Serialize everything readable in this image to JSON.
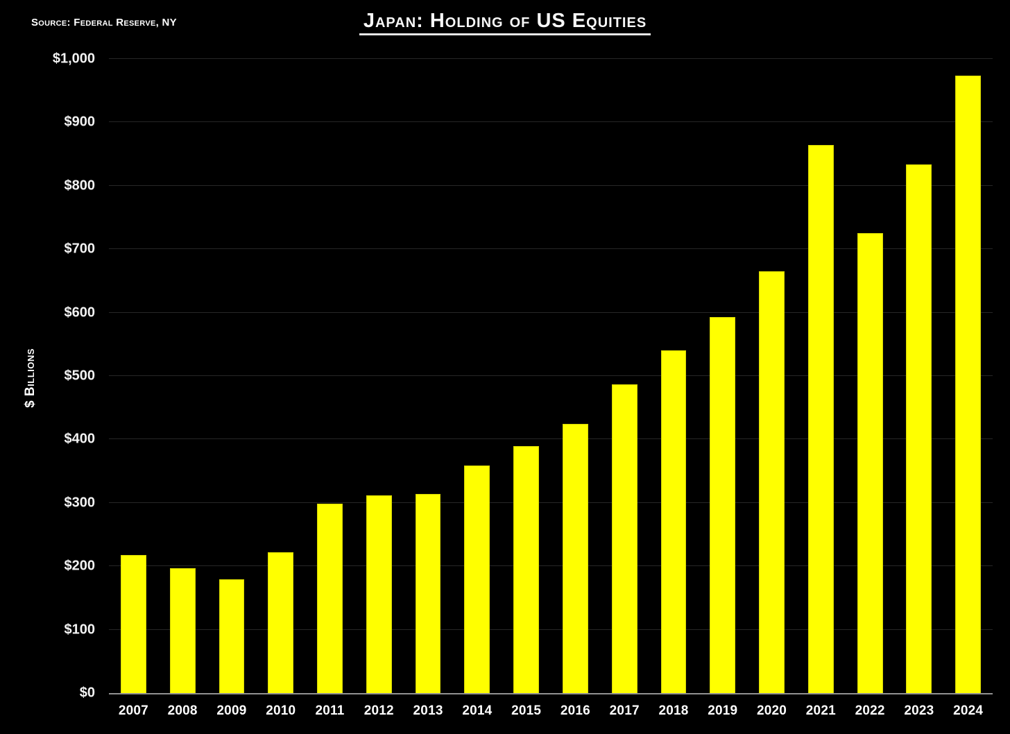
{
  "header": {
    "source_note": "Source: Federal Reserve, NY",
    "title": "Japan: Holding of US Equities"
  },
  "y_axis": {
    "label": "$ Billions",
    "tick_labels": [
      "$0",
      "$100",
      "$200",
      "$300",
      "$400",
      "$500",
      "$600",
      "$700",
      "$800",
      "$900",
      "$1,000"
    ],
    "tick_step": 100,
    "max": 1000
  },
  "chart_data": {
    "type": "bar",
    "title": "Japan: Holding of US Equities",
    "source": "Source: Federal Reserve, NY",
    "categories": [
      "2007",
      "2008",
      "2009",
      "2010",
      "2011",
      "2012",
      "2013",
      "2014",
      "2015",
      "2016",
      "2017",
      "2018",
      "2019",
      "2020",
      "2021",
      "2022",
      "2023",
      "2024"
    ],
    "values": [
      218,
      197,
      179,
      222,
      299,
      312,
      314,
      359,
      389,
      425,
      487,
      541,
      593,
      665,
      864,
      725,
      834,
      974
    ],
    "xlabel": "",
    "ylabel": "$ Billions",
    "ylim": [
      0,
      1000
    ],
    "ytick_step": 100,
    "grid": true,
    "legend": false,
    "bar_color": "#FFFF00",
    "background_color": "#000000"
  },
  "colors": {
    "bar_fill": "#FFFF00",
    "bar_border": "#D6D600",
    "background": "#000000",
    "text": "#FFFFFF",
    "gridline": "#272727",
    "axis_line": "#919191"
  }
}
